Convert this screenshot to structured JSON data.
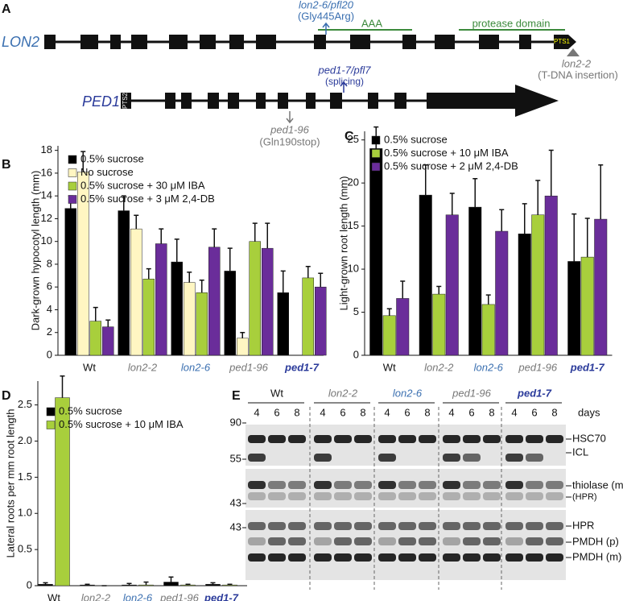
{
  "panel_A": {
    "letter": "A",
    "genes": [
      {
        "name": "LON2",
        "signal": "PTS1"
      },
      {
        "name": "PED1",
        "signal": "PTS2"
      }
    ],
    "domains": [
      "AAA",
      "protease domain"
    ],
    "mutations": [
      {
        "allele": "lon2-6/pfl20",
        "change": "(Gly445Arg)"
      },
      {
        "allele": "lon2-2",
        "change": "(T-DNA insertion)"
      },
      {
        "allele": "ped1-7/pfl7",
        "change": "(splicing)"
      },
      {
        "allele": "ped1-96",
        "change": "(Gln190stop)"
      }
    ]
  },
  "chart_data": [
    {
      "letter": "B",
      "type": "bar",
      "ylabel": "Dark-grown hypocotyl length (mm)",
      "categories": [
        "Wt",
        "lon2-2",
        "lon2-6",
        "ped1-96",
        "ped1-7"
      ],
      "category_colors": [
        "#111111",
        "#777777",
        "#3a6fb0",
        "#777777",
        "#2a3a9a"
      ],
      "series": [
        {
          "name": "0.5% sucrose",
          "color": "#000000",
          "values": [
            12.9,
            12.7,
            8.2,
            7.4,
            5.5
          ],
          "errors": [
            1.1,
            1.3,
            2.0,
            2.0,
            1.9
          ]
        },
        {
          "name": "No sucrose",
          "color": "#fff6c2",
          "values": [
            16.1,
            11.1,
            6.4,
            1.5,
            null
          ],
          "errors": [
            1.8,
            1.2,
            0.9,
            0.5,
            null
          ]
        },
        {
          "name": "0.5% sucrose + 30 μM IBA",
          "color": "#a8cf3c",
          "values": [
            3.0,
            6.7,
            5.5,
            10.0,
            6.8
          ],
          "errors": [
            1.2,
            0.9,
            1.1,
            1.6,
            1.0
          ]
        },
        {
          "name": "0.5% sucrose + 3 μM 2,4-DB",
          "color": "#6a2d9a",
          "values": [
            2.5,
            9.8,
            9.5,
            9.4,
            6.0
          ],
          "errors": [
            0.6,
            1.3,
            1.6,
            2.2,
            1.2
          ]
        }
      ],
      "ylim": [
        0,
        18.4
      ],
      "yticks": [
        0,
        2,
        4,
        6,
        8,
        10,
        12,
        14,
        16,
        18
      ]
    },
    {
      "letter": "C",
      "type": "bar",
      "ylabel": "Light-grown root length (mm)",
      "categories": [
        "Wt",
        "lon2-2",
        "lon2-6",
        "ped1-96",
        "ped1-7"
      ],
      "category_colors": [
        "#111111",
        "#777777",
        "#3a6fb0",
        "#777777",
        "#2a3a9a"
      ],
      "series": [
        {
          "name": "0.5% sucrose",
          "color": "#000000",
          "values": [
            24.0,
            18.6,
            17.2,
            14.1,
            10.9
          ],
          "errors": [
            2.5,
            3.5,
            3.3,
            3.5,
            5.5
          ]
        },
        {
          "name": "0.5% sucrose + 10 μM IBA",
          "color": "#a8cf3c",
          "values": [
            4.6,
            7.1,
            5.9,
            16.3,
            11.4
          ],
          "errors": [
            0.8,
            0.9,
            1.1,
            4.0,
            4.5
          ]
        },
        {
          "name": "0.5% sucrose + 2 μM 2,4-DB",
          "color": "#6a2d9a",
          "values": [
            6.6,
            16.3,
            14.4,
            18.5,
            15.8
          ],
          "errors": [
            2.0,
            2.5,
            2.5,
            5.3,
            6.3
          ]
        }
      ],
      "ylim": [
        0,
        26
      ],
      "yticks": [
        0,
        5,
        10,
        15,
        20,
        25
      ]
    },
    {
      "letter": "D",
      "type": "bar",
      "ylabel": "Lateral roots per mm root length",
      "categories": [
        "Wt",
        "lon2-2",
        "lon2-6",
        "ped1-96",
        "ped1-7"
      ],
      "category_colors": [
        "#111111",
        "#777777",
        "#3a6fb0",
        "#777777",
        "#2a3a9a"
      ],
      "series": [
        {
          "name": "0.5% sucrose",
          "color": "#000000",
          "values": [
            0.02,
            0.01,
            0.01,
            0.05,
            0.02
          ],
          "errors": [
            0.02,
            0.01,
            0.02,
            0.07,
            0.02
          ]
        },
        {
          "name": "0.5% sucrose + 10 μM IBA",
          "color": "#a8cf3c",
          "values": [
            2.6,
            0.0,
            0.01,
            0.01,
            0.01
          ],
          "errors": [
            0.3,
            0.0,
            0.04,
            0.01,
            0.01
          ]
        }
      ],
      "ylim": [
        0,
        2.83
      ],
      "yticks": [
        0,
        0.5,
        {
          "value": 1,
          "label": "1.0"
        },
        1.5,
        {
          "value": 2,
          "label": "2.0"
        },
        2.5
      ]
    }
  ],
  "panel_E": {
    "letter": "E",
    "genotypes": [
      "Wt",
      "lon2-2",
      "lon2-6",
      "ped1-96",
      "ped1-7"
    ],
    "days_label": "days",
    "days": [
      4,
      6,
      8
    ],
    "markers": [
      90,
      55,
      43,
      43
    ],
    "bands": [
      "HSC70",
      "ICL",
      "thiolase (m)",
      "(HPR)",
      "HPR",
      "PMDH (p)",
      "PMDH (m)"
    ]
  }
}
